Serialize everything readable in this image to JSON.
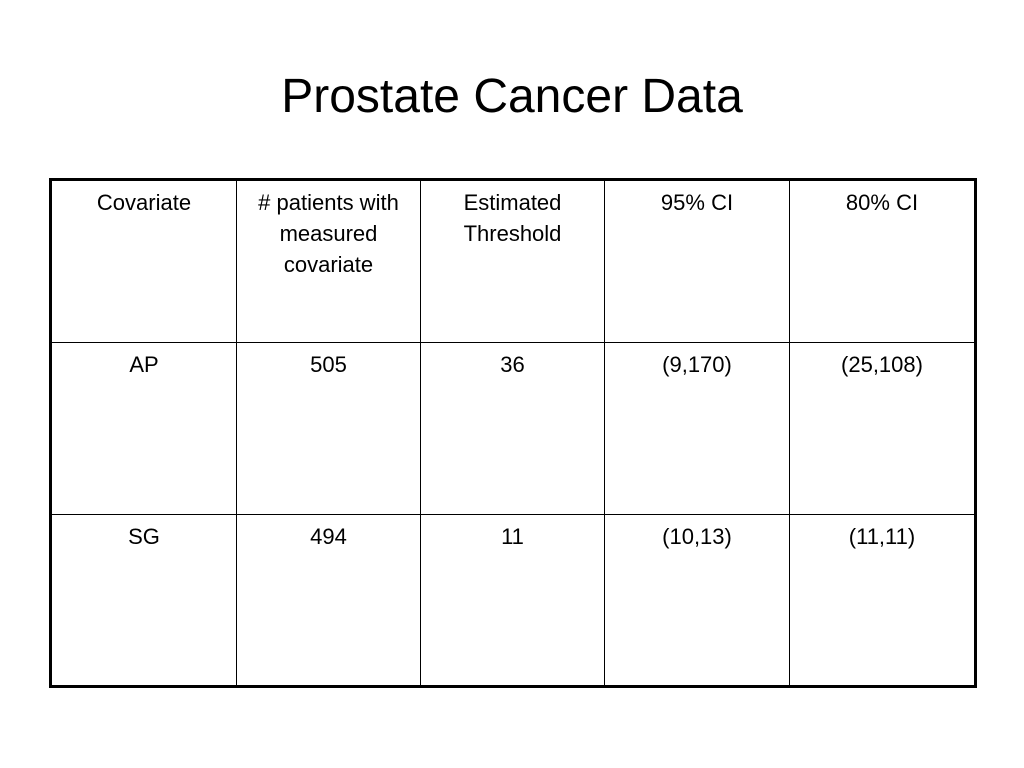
{
  "title": "Prostate Cancer Data",
  "table": {
    "headers": [
      "Covariate",
      "# patients with measured covariate",
      "Estimated Threshold",
      "95% CI",
      "80% CI"
    ],
    "rows": [
      [
        "AP",
        "505",
        "36",
        "(9,170)",
        "(25,108)"
      ],
      [
        "SG",
        "494",
        "11",
        "(10,13)",
        "(11,11)"
      ]
    ]
  }
}
